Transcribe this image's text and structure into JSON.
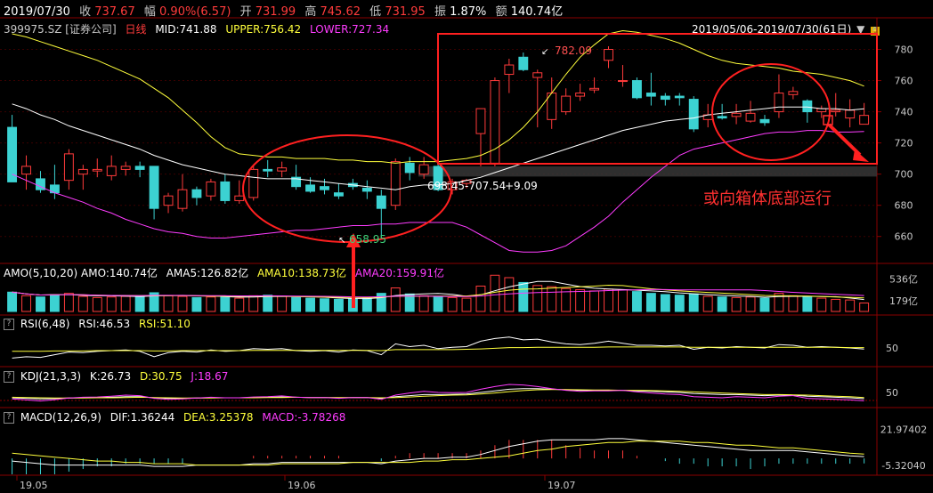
{
  "header": {
    "date": "2019/07/30",
    "close_label": "收",
    "close": "737.67",
    "chg_label": "幅",
    "chg_pct": "0.90%(6.57)",
    "open_label": "开",
    "open": "731.99",
    "high_label": "高",
    "high": "745.62",
    "low_label": "低",
    "low": "731.95",
    "amp_label": "振",
    "amp": "1.87%",
    "amount_label": "额",
    "amount": "140.74亿"
  },
  "main_panel": {
    "code": "399975.SZ [证券公司]",
    "period": "日线",
    "mid": "MID:741.88",
    "upper": "UPPER:756.42",
    "lower": "LOWER:727.34",
    "range": "2019/05/06-2019/07/30(61日)",
    "annotation_high": "782.09",
    "annotation_low": "658.95",
    "annotation_range": "698.45-707.54",
    "annotation_diff": "+9.09",
    "comment": "或向箱体底部运行"
  },
  "amo_panel": {
    "label": "AMO(5,10,20)",
    "amo": "AMO:140.74亿",
    "ama5": "AMA5:126.82亿",
    "ama10": "AMA10:138.73亿",
    "ama20": "AMA20:159.91亿",
    "ticks": [
      "536亿",
      "179亿"
    ]
  },
  "rsi_panel": {
    "label": "RSI(6,48)",
    "rsi": "RSI:46.53",
    "rsi2": "RSI:51.10",
    "tick": "50"
  },
  "kdj_panel": {
    "label": "KDJ(21,3,3)",
    "k": "K:26.73",
    "d": "D:30.75",
    "j": "J:18.67",
    "tick": "50"
  },
  "macd_panel": {
    "label": "MACD(12,26,9)",
    "dif": "DIF:1.36244",
    "dea": "DEA:3.25378",
    "macd": "MACD:-3.78268",
    "ticks": [
      "21.97402",
      "-5.32040"
    ]
  },
  "x_ticks": [
    "19.05",
    "19.06",
    "19.07"
  ],
  "colors": {
    "up": "#ff3b3b",
    "down": "#3cd2d2",
    "mid": "#ffffff",
    "upper": "#ffff3c",
    "lower": "#ff3cff",
    "annotation": "#ff2020"
  },
  "chart_data": {
    "type": "candlestick",
    "title": "399975.SZ [证券公司]",
    "date_range": [
      "2019/05/06",
      "2019/07/30"
    ],
    "ylim": [
      645,
      790
    ],
    "yticks": [
      660,
      680,
      700,
      720,
      740,
      760,
      780
    ],
    "candles": [
      {
        "o": 730,
        "h": 738,
        "l": 695,
        "c": 695
      },
      {
        "o": 700,
        "h": 712,
        "l": 690,
        "c": 705
      },
      {
        "o": 697,
        "h": 702,
        "l": 688,
        "c": 690
      },
      {
        "o": 693,
        "h": 706,
        "l": 684,
        "c": 688
      },
      {
        "o": 696,
        "h": 716,
        "l": 690,
        "c": 713
      },
      {
        "o": 700,
        "h": 706,
        "l": 690,
        "c": 703
      },
      {
        "o": 702,
        "h": 710,
        "l": 698,
        "c": 703
      },
      {
        "o": 699,
        "h": 712,
        "l": 696,
        "c": 705
      },
      {
        "o": 703,
        "h": 708,
        "l": 699,
        "c": 705
      },
      {
        "o": 705,
        "h": 708,
        "l": 698,
        "c": 703
      },
      {
        "o": 705,
        "h": 705,
        "l": 671,
        "c": 678
      },
      {
        "o": 680,
        "h": 688,
        "l": 675,
        "c": 686
      },
      {
        "o": 678,
        "h": 700,
        "l": 676,
        "c": 690
      },
      {
        "o": 690,
        "h": 692,
        "l": 680,
        "c": 685
      },
      {
        "o": 686,
        "h": 697,
        "l": 683,
        "c": 695
      },
      {
        "o": 695,
        "h": 700,
        "l": 681,
        "c": 683
      },
      {
        "o": 683,
        "h": 696,
        "l": 681,
        "c": 686
      },
      {
        "o": 685,
        "h": 706,
        "l": 683,
        "c": 703
      },
      {
        "o": 703,
        "h": 709,
        "l": 698,
        "c": 702
      },
      {
        "o": 702,
        "h": 708,
        "l": 698,
        "c": 704
      },
      {
        "o": 698,
        "h": 706,
        "l": 690,
        "c": 692
      },
      {
        "o": 693,
        "h": 698,
        "l": 688,
        "c": 689
      },
      {
        "o": 692,
        "h": 697,
        "l": 687,
        "c": 690
      },
      {
        "o": 688,
        "h": 694,
        "l": 684,
        "c": 686
      },
      {
        "o": 694,
        "h": 697,
        "l": 690,
        "c": 692
      },
      {
        "o": 691,
        "h": 696,
        "l": 684,
        "c": 689
      },
      {
        "o": 686,
        "h": 690,
        "l": 659,
        "c": 678
      },
      {
        "o": 680,
        "h": 710,
        "l": 677,
        "c": 708
      },
      {
        "o": 707,
        "h": 711,
        "l": 696,
        "c": 701
      },
      {
        "o": 700,
        "h": 711,
        "l": 697,
        "c": 706
      },
      {
        "o": 705,
        "h": 707,
        "l": 689,
        "c": 690
      },
      {
        "o": 690,
        "h": 697,
        "l": 687,
        "c": 695
      },
      {
        "o": 694,
        "h": 697,
        "l": 691,
        "c": 696
      },
      {
        "o": 726,
        "h": 742,
        "l": 705,
        "c": 742
      },
      {
        "o": 707,
        "h": 762,
        "l": 705,
        "c": 760
      },
      {
        "o": 764,
        "h": 774,
        "l": 752,
        "c": 770
      },
      {
        "o": 775,
        "h": 778,
        "l": 766,
        "c": 767
      },
      {
        "o": 762,
        "h": 767,
        "l": 730,
        "c": 765
      },
      {
        "o": 735,
        "h": 762,
        "l": 729,
        "c": 752
      },
      {
        "o": 740,
        "h": 755,
        "l": 738,
        "c": 750
      },
      {
        "o": 750,
        "h": 758,
        "l": 747,
        "c": 752
      },
      {
        "o": 754,
        "h": 762,
        "l": 752,
        "c": 755
      },
      {
        "o": 773,
        "h": 782,
        "l": 768,
        "c": 780
      },
      {
        "o": 760,
        "h": 770,
        "l": 756,
        "c": 760
      },
      {
        "o": 760,
        "h": 762,
        "l": 748,
        "c": 749
      },
      {
        "o": 752,
        "h": 765,
        "l": 744,
        "c": 750
      },
      {
        "o": 750,
        "h": 752,
        "l": 744,
        "c": 748
      },
      {
        "o": 750,
        "h": 752,
        "l": 744,
        "c": 749
      },
      {
        "o": 748,
        "h": 750,
        "l": 727,
        "c": 729
      },
      {
        "o": 735,
        "h": 745,
        "l": 730,
        "c": 738
      },
      {
        "o": 737,
        "h": 745,
        "l": 735,
        "c": 736
      },
      {
        "o": 737,
        "h": 745,
        "l": 732,
        "c": 739
      },
      {
        "o": 734,
        "h": 747,
        "l": 733,
        "c": 739
      },
      {
        "o": 735,
        "h": 738,
        "l": 731,
        "c": 733
      },
      {
        "o": 740,
        "h": 764,
        "l": 736,
        "c": 752
      },
      {
        "o": 751,
        "h": 756,
        "l": 748,
        "c": 753
      },
      {
        "o": 747,
        "h": 748,
        "l": 733,
        "c": 740
      },
      {
        "o": 740,
        "h": 744,
        "l": 736,
        "c": 742
      },
      {
        "o": 740,
        "h": 752,
        "l": 737,
        "c": 741
      },
      {
        "o": 736,
        "h": 748,
        "l": 730,
        "c": 741
      },
      {
        "o": 731.99,
        "h": 745.62,
        "l": 731.95,
        "c": 737.67
      }
    ],
    "boll_mid": [
      745,
      742,
      738,
      735,
      731,
      728,
      725,
      722,
      719,
      716,
      712,
      709,
      706,
      704,
      702,
      700,
      699,
      698,
      697,
      697,
      697,
      696,
      695,
      694,
      693,
      692,
      691,
      690,
      692,
      693,
      693,
      694,
      696,
      698,
      701,
      704,
      707,
      710,
      713,
      716,
      719,
      722,
      725,
      728,
      730,
      732,
      734,
      735,
      736,
      738,
      739,
      740,
      741,
      742,
      743,
      743,
      743,
      742,
      742,
      741,
      741.88
    ],
    "boll_upper": [
      790,
      788,
      785,
      782,
      779,
      776,
      773,
      769,
      765,
      761,
      755,
      749,
      741,
      733,
      724,
      717,
      713,
      712,
      711,
      711,
      710,
      710,
      710,
      709,
      709,
      708,
      708,
      707,
      708,
      708,
      708,
      709,
      710,
      712,
      716,
      722,
      730,
      740,
      752,
      764,
      775,
      783,
      790,
      792,
      791,
      789,
      787,
      784,
      780,
      776,
      773,
      771,
      770,
      769,
      768,
      766,
      765,
      764,
      762,
      760,
      756.42
    ],
    "boll_lower": [
      700,
      696,
      692,
      688,
      685,
      682,
      678,
      675,
      671,
      668,
      665,
      663,
      662,
      660,
      659,
      659,
      660,
      661,
      662,
      663,
      664,
      664,
      665,
      666,
      667,
      667,
      668,
      668,
      669,
      669,
      669,
      669,
      666,
      661,
      656,
      651,
      650,
      650,
      651,
      654,
      660,
      666,
      673,
      682,
      690,
      698,
      705,
      712,
      716,
      718,
      720,
      722,
      724,
      726,
      727,
      727,
      728,
      728,
      727,
      727,
      727.34
    ],
    "amo": [
      320,
      260,
      240,
      280,
      300,
      250,
      230,
      240,
      250,
      260,
      310,
      260,
      250,
      230,
      240,
      250,
      220,
      260,
      270,
      250,
      230,
      220,
      210,
      200,
      210,
      220,
      300,
      390,
      290,
      260,
      250,
      230,
      220,
      420,
      600,
      560,
      480,
      430,
      410,
      380,
      360,
      340,
      370,
      360,
      330,
      300,
      280,
      270,
      290,
      250,
      240,
      230,
      240,
      220,
      300,
      260,
      240,
      220,
      200,
      190,
      140.74
    ],
    "rsi_ylim": [
      0,
      100
    ],
    "rsi_fast": [
      20,
      24,
      22,
      30,
      38,
      36,
      40,
      42,
      44,
      40,
      24,
      36,
      40,
      38,
      44,
      40,
      42,
      48,
      46,
      48,
      42,
      40,
      42,
      38,
      44,
      42,
      30,
      62,
      54,
      58,
      48,
      52,
      54,
      70,
      78,
      82,
      74,
      76,
      68,
      62,
      60,
      64,
      70,
      64,
      58,
      58,
      56,
      58,
      46,
      52,
      50,
      54,
      52,
      50,
      60,
      58,
      52,
      54,
      52,
      50,
      46.53
    ],
    "rsi_slow": [
      40,
      40,
      40,
      41,
      41,
      41,
      42,
      42,
      42,
      42,
      41,
      41,
      42,
      42,
      42,
      42,
      42,
      43,
      43,
      43,
      43,
      43,
      43,
      43,
      43,
      43,
      42,
      45,
      45,
      45,
      45,
      45,
      46,
      47,
      49,
      51,
      51,
      52,
      52,
      52,
      52,
      52,
      53,
      53,
      53,
      53,
      53,
      53,
      52,
      52,
      52,
      52,
      52,
      52,
      52,
      52,
      52,
      52,
      52,
      51,
      51.1
    ],
    "kdj_ylim": [
      0,
      100
    ],
    "kdj_k": [
      30,
      28,
      26,
      27,
      29,
      30,
      31,
      32,
      34,
      34,
      30,
      28,
      28,
      29,
      30,
      30,
      30,
      31,
      32,
      33,
      32,
      31,
      31,
      30,
      31,
      31,
      28,
      34,
      38,
      42,
      42,
      43,
      44,
      50,
      56,
      62,
      64,
      64,
      62,
      60,
      58,
      58,
      58,
      58,
      56,
      54,
      52,
      50,
      46,
      44,
      42,
      42,
      40,
      38,
      40,
      40,
      36,
      34,
      32,
      30,
      26.73
    ],
    "kdj_d": [
      32,
      31,
      30,
      29,
      29,
      29,
      30,
      30,
      31,
      32,
      31,
      30,
      29,
      29,
      29,
      30,
      30,
      30,
      31,
      31,
      32,
      31,
      31,
      31,
      31,
      31,
      30,
      31,
      33,
      36,
      38,
      40,
      41,
      44,
      48,
      53,
      57,
      60,
      61,
      61,
      60,
      59,
      59,
      58,
      58,
      57,
      56,
      54,
      52,
      50,
      48,
      46,
      44,
      42,
      42,
      41,
      40,
      38,
      36,
      34,
      30.75
    ],
    "kdj_j": [
      26,
      22,
      18,
      23,
      29,
      32,
      33,
      36,
      40,
      38,
      28,
      24,
      26,
      29,
      32,
      30,
      30,
      33,
      34,
      37,
      32,
      31,
      31,
      28,
      31,
      31,
      24,
      40,
      48,
      54,
      50,
      49,
      50,
      62,
      72,
      80,
      78,
      72,
      64,
      58,
      54,
      56,
      56,
      58,
      52,
      48,
      44,
      42,
      34,
      32,
      30,
      34,
      32,
      30,
      36,
      38,
      28,
      26,
      24,
      22,
      18.67
    ],
    "macd_ylim": [
      -10,
      25
    ],
    "macd_dif": [
      -2,
      -3,
      -4,
      -5,
      -5,
      -5,
      -5,
      -5,
      -5,
      -5,
      -6,
      -6,
      -6,
      -5,
      -5,
      -5,
      -5,
      -4,
      -4,
      -3,
      -3,
      -3,
      -3,
      -3,
      -3,
      -3,
      -4,
      -2,
      -1,
      0,
      0,
      1,
      1,
      3,
      6,
      9,
      11,
      13,
      14,
      14,
      14,
      14,
      15,
      15,
      14,
      13,
      12,
      11,
      10,
      9,
      8,
      7,
      6,
      6,
      6,
      6,
      5,
      4,
      3,
      2,
      1.36244
    ],
    "macd_dea": [
      4,
      3,
      2,
      1,
      0,
      -1,
      -2,
      -2,
      -3,
      -3,
      -4,
      -4,
      -4,
      -5,
      -5,
      -5,
      -5,
      -5,
      -5,
      -4,
      -4,
      -4,
      -4,
      -4,
      -3,
      -3,
      -3,
      -3,
      -3,
      -2,
      -2,
      -1,
      -1,
      0,
      1,
      2,
      4,
      6,
      7,
      9,
      10,
      11,
      12,
      12,
      13,
      13,
      13,
      13,
      12,
      12,
      11,
      10,
      10,
      9,
      8,
      8,
      7,
      6,
      5,
      4,
      3.25378
    ],
    "macd_hist": [
      -12,
      -12,
      -12,
      -12,
      -10,
      -8,
      -6,
      -6,
      -4,
      -4,
      -4,
      -4,
      -4,
      0,
      0,
      0,
      0,
      2,
      2,
      2,
      2,
      2,
      2,
      2,
      0,
      0,
      -2,
      2,
      4,
      4,
      4,
      4,
      4,
      6,
      10,
      14,
      14,
      14,
      14,
      10,
      8,
      6,
      6,
      6,
      2,
      0,
      -2,
      -4,
      -4,
      -6,
      -6,
      -6,
      -8,
      -6,
      -4,
      -4,
      -4,
      -4,
      -4,
      -4,
      -3.78268
    ]
  }
}
